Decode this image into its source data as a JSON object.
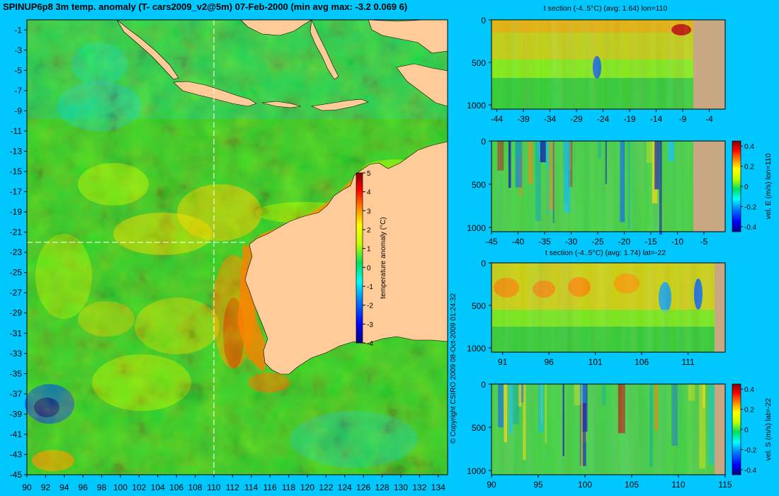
{
  "header": {
    "title": "SPINUP6p8 3m temp. anomaly (T- cars2009_v2@5m) 07-Feb-2000 (min avg max: -3.2 0.069 6)",
    "copyright": "© Copyright CSIRO 2009   08-Oct-2009 01:24:32"
  },
  "colors": {
    "background": "#00c8ff",
    "land": "#ffcc99",
    "seabed": "#c8a882",
    "colormap": [
      "#000080",
      "#0000ff",
      "#0080ff",
      "#00ffff",
      "#00e060",
      "#c0ff00",
      "#ffff00",
      "#ff8000",
      "#ff0000",
      "#800000"
    ]
  },
  "chart_data": [
    {
      "id": "map",
      "type": "heatmap",
      "title": "SPINUP6p8 3m temp. anomaly (T- cars2009_v2@5m) 07-Feb-2000 (min avg max: -3.2 0.069 6)",
      "x_ticks": [
        "90",
        "92",
        "94",
        "96",
        "98",
        "100",
        "102",
        "104",
        "106",
        "108",
        "110",
        "112",
        "114",
        "116",
        "118",
        "120",
        "122",
        "124",
        "126",
        "128",
        "130",
        "132",
        "134"
      ],
      "y_ticks": [
        "-1",
        "-3",
        "-5",
        "-7",
        "-9",
        "-11",
        "-13",
        "-15",
        "-17",
        "-19",
        "-21",
        "-23",
        "-25",
        "-27",
        "-29",
        "-31",
        "-33",
        "-35",
        "-37",
        "-39",
        "-41",
        "-43",
        "-45"
      ],
      "xlim": [
        90,
        135
      ],
      "ylim": [
        -45,
        0
      ],
      "colorbar": {
        "label": "temperature anomaly (°C)",
        "ticks": [
          "5",
          "4",
          "3",
          "2",
          "1",
          "0",
          "-1",
          "-2",
          "-3",
          "-4"
        ],
        "range": [
          -4,
          5
        ]
      },
      "section_lines": {
        "lon": 110,
        "lat": -22
      }
    },
    {
      "id": "section-lon",
      "type": "heatmap",
      "title": "t section (-4..5°C) (avg: 1.64) lon=110",
      "x_ticks": [
        "-44",
        "-39",
        "-34",
        "-29",
        "-24",
        "-19",
        "-14",
        "-9",
        "-4"
      ],
      "y_ticks": [
        "0",
        "500",
        "1000"
      ],
      "xlim": [
        -45,
        -1
      ],
      "ylim": [
        1050,
        0
      ]
    },
    {
      "id": "vel-east",
      "type": "heatmap",
      "title": "",
      "x_ticks": [
        "-45",
        "-40",
        "-35",
        "-30",
        "-25",
        "-20",
        "-15",
        "-10",
        "-5"
      ],
      "y_ticks": [
        "0",
        "500",
        "1000"
      ],
      "xlim": [
        -45,
        -1
      ],
      "ylim": [
        1050,
        0
      ],
      "colorbar": {
        "label": "vel. E (m/s) lon=110",
        "ticks": [
          "0.4",
          "0.2",
          "0",
          "-0.2",
          "-0.4"
        ],
        "range": [
          -0.45,
          0.45
        ]
      }
    },
    {
      "id": "section-lat",
      "type": "heatmap",
      "title": "t section (-4..5°C) (avg: 1.74) lat=-22",
      "x_ticks": [
        "91",
        "96",
        "101",
        "106",
        "111"
      ],
      "y_ticks": [
        "0",
        "500",
        "1000"
      ],
      "xlim": [
        89.8,
        115
      ],
      "ylim": [
        1050,
        0
      ]
    },
    {
      "id": "vel-south",
      "type": "heatmap",
      "title": "",
      "x_ticks": [
        "90",
        "95",
        "100",
        "105",
        "110",
        "115"
      ],
      "y_ticks": [
        "0",
        "500",
        "1000"
      ],
      "xlim": [
        90,
        115
      ],
      "ylim": [
        1050,
        0
      ],
      "colorbar": {
        "label": "vel. S (m/s) lat=-22",
        "ticks": [
          "0.4",
          "0.2",
          "0",
          "-0.2",
          "-0.4"
        ],
        "range": [
          -0.45,
          0.45
        ]
      }
    }
  ]
}
